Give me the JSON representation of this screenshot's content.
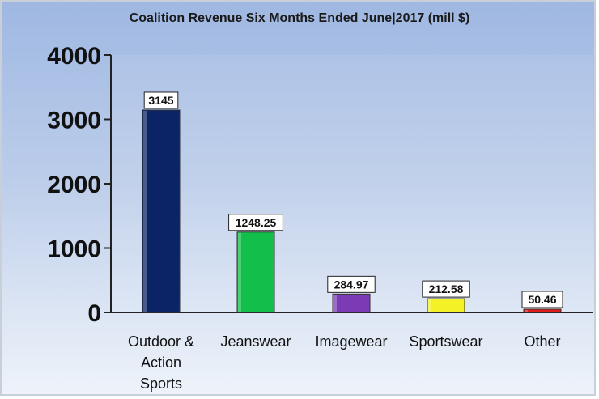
{
  "chart_data": {
    "type": "bar",
    "title": "Coalition Revenue Six Months Ended June|2017 (mill $)",
    "xlabel": "",
    "ylabel": "",
    "categories": [
      [
        "Outdoor &",
        "Action",
        "Sports"
      ],
      [
        "Jeanswear"
      ],
      [
        "Imagewear"
      ],
      [
        "Sportswear"
      ],
      [
        "Other"
      ]
    ],
    "values": [
      3145,
      1248.25,
      284.97,
      212.58,
      50.46
    ],
    "data_labels": [
      "3145",
      "1248.25",
      "284.97",
      "212.58",
      "50.46"
    ],
    "ylim": [
      0,
      4000
    ],
    "yticks": [
      0,
      1000,
      2000,
      3000,
      4000
    ],
    "grid": false,
    "legend": "none",
    "colors": [
      "#0b2466",
      "#11bf4a",
      "#7b3bb5",
      "#f4f226",
      "#e01e1e"
    ]
  }
}
